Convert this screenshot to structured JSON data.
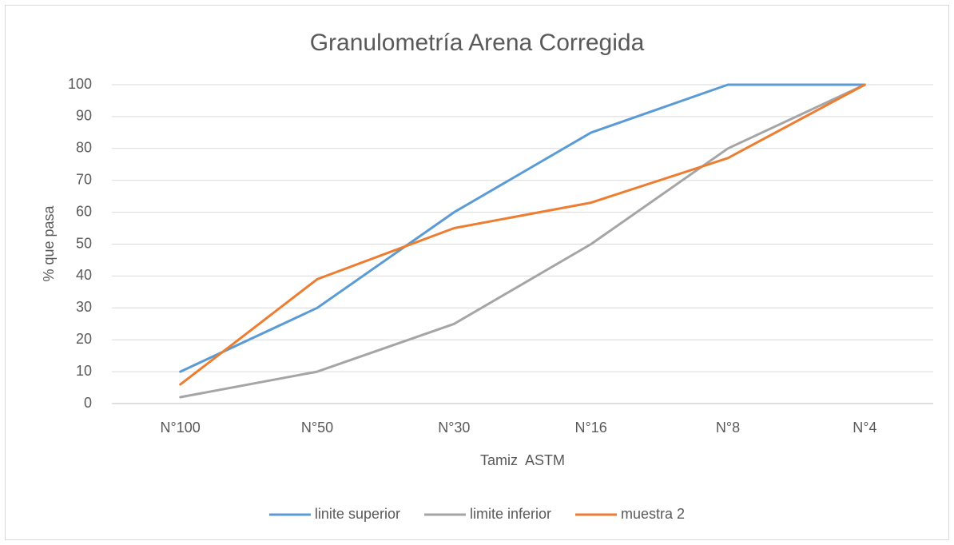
{
  "chart_data": {
    "type": "line",
    "title": "Granulometría Arena Corregida",
    "x_label": "Tamiz  ASTM",
    "y_label": "% que pasa",
    "categories": [
      "N°100",
      "N°50",
      "N°30",
      "N°16",
      "N°8",
      "N°4"
    ],
    "series": [
      {
        "name": "linite superior",
        "color": "#5b9bd5",
        "values": [
          10,
          30,
          60,
          85,
          100,
          100
        ]
      },
      {
        "name": "limite inferior",
        "color": "#a5a5a5",
        "values": [
          2,
          10,
          25,
          50,
          80,
          100
        ]
      },
      {
        "name": "muestra 2",
        "color": "#ed7d31",
        "values": [
          6,
          39,
          55,
          63,
          77,
          100
        ]
      }
    ],
    "ylim": [
      0,
      100
    ],
    "yticks": [
      0,
      10,
      20,
      30,
      40,
      50,
      60,
      70,
      80,
      90,
      100
    ],
    "grid": true,
    "legend": "bottom"
  }
}
